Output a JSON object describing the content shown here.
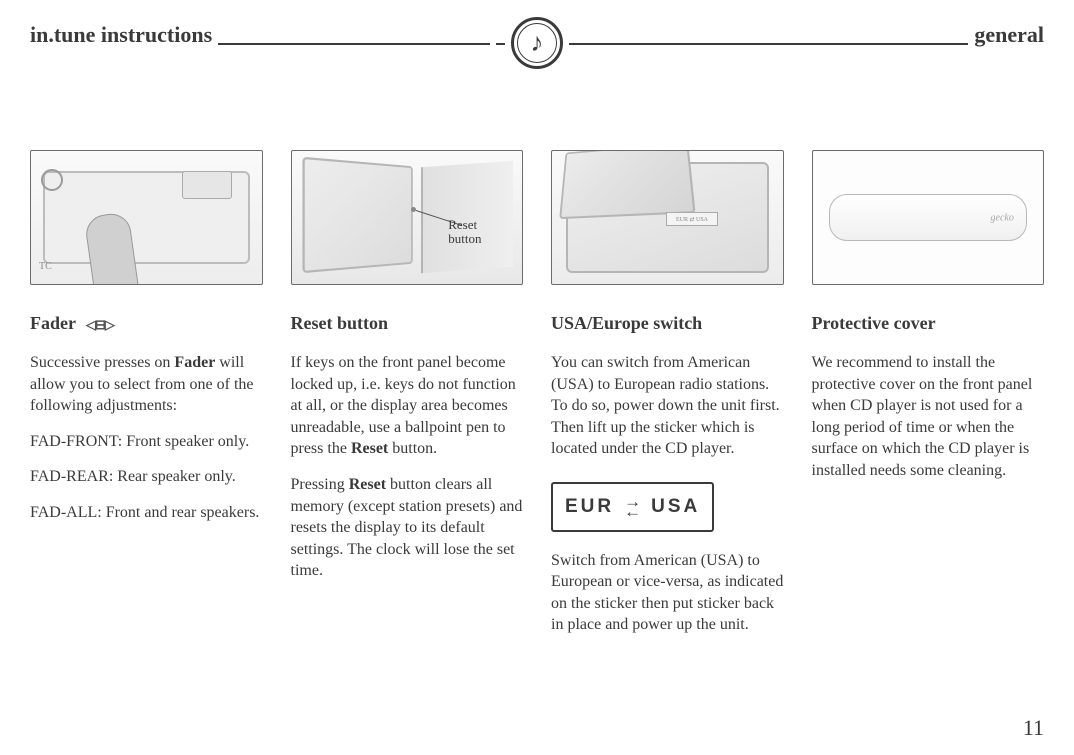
{
  "header": {
    "left": "in.tune instructions",
    "right": "general",
    "icon_glyph": "♪"
  },
  "page_number": "11",
  "columns": {
    "fader": {
      "title": "Fader",
      "glyph": "◁⊟▷",
      "p1_pre": "Successive presses on ",
      "p1_bold": "Fader",
      "p1_post": " will allow you to select from one of the following adjustments:",
      "p2": "FAD-FRONT: Front speaker only.",
      "p3": "FAD-REAR: Rear speaker only.",
      "p4": "FAD-ALL: Front and rear speakers.",
      "img_tc": "TC"
    },
    "reset": {
      "title": "Reset button",
      "callout_l1": "Reset",
      "callout_l2": "button",
      "p1_pre": "If keys on the front panel become locked up, i.e. keys do not function at all, or the display area becomes unreadable, use a ballpoint pen to press the ",
      "p1_bold": "Reset",
      "p1_post": " button.",
      "p2_pre": "Pressing ",
      "p2_bold": "Reset",
      "p2_post": " button clears all memory (except station presets) and resets the display to its default settings. The clock will lose the set time."
    },
    "usa": {
      "title": "USA/Europe switch",
      "p1": "You can switch from American (USA) to European radio stations. To do so, power down the unit first. Then lift up the sticker which is located under the CD player.",
      "sticker_eur": "EUR",
      "sticker_usa": "USA",
      "p2": "Switch from American (USA) to European or vice-versa, as indicated on the sticker then put sticker back in place and power up the unit.",
      "img_sticker": "EUR ⇄ USA"
    },
    "cover": {
      "title": "Protective cover",
      "p1": "We recommend to install the protective cover on the front panel when CD player is not used for a long period of time or when the surface on which the CD player is installed needs some cleaning.",
      "brand": "gecko"
    }
  },
  "colors": {
    "text": "#3a3a3a",
    "border": "#6b6b6b",
    "bg": "#ffffff"
  }
}
